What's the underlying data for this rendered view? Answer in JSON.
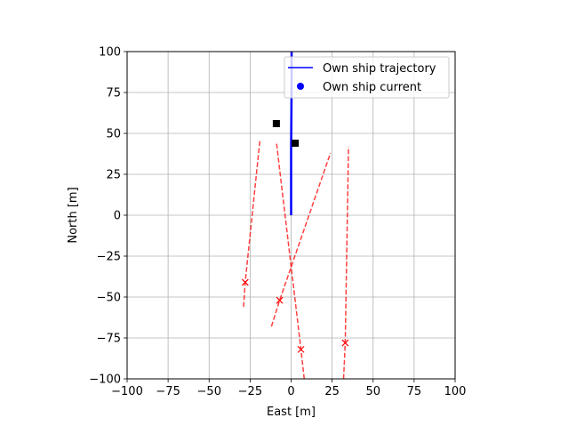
{
  "chart_data": {
    "type": "line",
    "xlabel": "East [m]",
    "ylabel": "North [m]",
    "xlim": [
      -100,
      100
    ],
    "ylim": [
      -100,
      100
    ],
    "xticks": [
      -100,
      -75,
      -50,
      -25,
      0,
      25,
      50,
      75,
      100
    ],
    "yticks": [
      -100,
      -75,
      -50,
      -25,
      0,
      25,
      50,
      75,
      100
    ],
    "xtick_labels": [
      "−100",
      "−75",
      "−50",
      "−25",
      "0",
      "25",
      "50",
      "75",
      "100"
    ],
    "ytick_labels": [
      "−100",
      "−75",
      "−50",
      "−25",
      "0",
      "25",
      "50",
      "75",
      "100"
    ],
    "grid": true,
    "legend": {
      "placement": "top-right",
      "entries": [
        {
          "label": "Own ship trajectory",
          "marker": "line",
          "color": "#0000ff"
        },
        {
          "label": "Own ship current",
          "marker": "circle",
          "color": "#0000ff"
        }
      ]
    },
    "own_ship_trajectory": {
      "name": "Own ship trajectory",
      "color": "#0000ff",
      "points": [
        [
          0,
          0
        ],
        [
          0,
          40
        ],
        [
          0.3,
          80
        ],
        [
          0.3,
          100
        ]
      ]
    },
    "square_markers": {
      "color": "#000000",
      "points": [
        [
          -9,
          56
        ],
        [
          2.5,
          44
        ]
      ]
    },
    "obstacle_tracks": {
      "color": "#ff0000",
      "style": "dashed",
      "tracks": [
        {
          "current": [
            -28,
            -41
          ],
          "start": [
            -29,
            -56
          ],
          "end": [
            -19,
            46
          ]
        },
        {
          "current": [
            -7,
            -52
          ],
          "start": [
            -12,
            -68
          ],
          "end": [
            24,
            38
          ]
        },
        {
          "current": [
            6,
            -82
          ],
          "start": [
            8,
            -100
          ],
          "end": [
            -9,
            45
          ]
        },
        {
          "current": [
            33,
            -78
          ],
          "start": [
            32,
            -100
          ],
          "end": [
            35,
            42
          ]
        }
      ]
    }
  }
}
